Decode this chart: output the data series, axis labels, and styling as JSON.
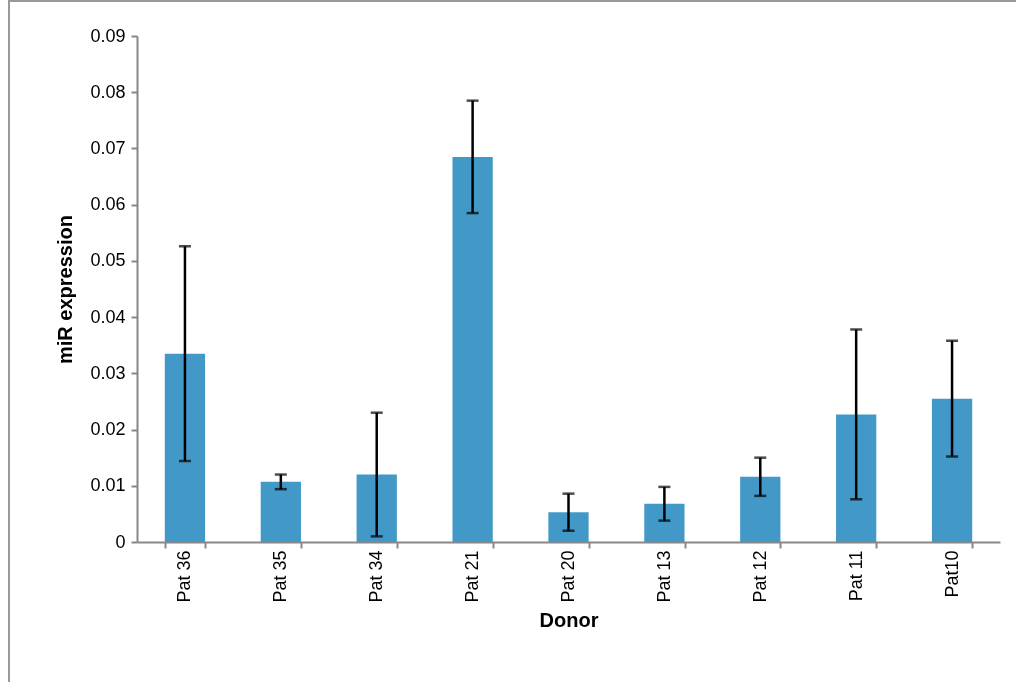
{
  "chart_data": {
    "type": "bar",
    "xlabel": "Donor",
    "ylabel": "miR expression",
    "categories": [
      "Pat 36",
      "Pat 35",
      "Pat 34",
      "Pat 21",
      "Pat 20",
      "Pat 13",
      "Pat 12",
      "Pat 11",
      "Pat10"
    ],
    "values": [
      0.0335,
      0.0107,
      0.012,
      0.0685,
      0.0053,
      0.0068,
      0.0116,
      0.0227,
      0.0255
    ],
    "errors": [
      0.0191,
      0.0013,
      0.011,
      0.01,
      0.0033,
      0.003,
      0.0034,
      0.0151,
      0.0103
    ],
    "color": "#4299c8",
    "ylim": [
      0,
      0.09
    ],
    "yticks": [
      0,
      0.01,
      0.02,
      0.03,
      0.04,
      0.05,
      0.06,
      0.07,
      0.08,
      0.09
    ],
    "grid": false
  }
}
